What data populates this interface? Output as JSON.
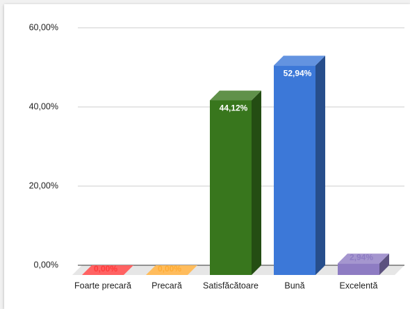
{
  "chart_data": {
    "type": "bar3d",
    "categories": [
      "Foarte precară",
      "Precară",
      "Satisfăcătoare",
      "Bună",
      "Excelentă"
    ],
    "values": [
      0,
      0,
      44.12,
      52.94,
      2.94
    ],
    "value_labels": [
      "0,00%",
      "0,00%",
      "44,12%",
      "52,94%",
      "2,94%"
    ],
    "colors": [
      "#ff3b3b",
      "#ffab33",
      "#38761d",
      "#3c78d8",
      "#8e7cc3"
    ],
    "ylim": [
      0,
      60
    ],
    "yticks": [
      {
        "value": 0,
        "label": "0,00%"
      },
      {
        "value": 20,
        "label": "20,00%"
      },
      {
        "value": 40,
        "label": "40,00%"
      },
      {
        "value": 60,
        "label": "60,00%"
      }
    ],
    "grid": true
  }
}
